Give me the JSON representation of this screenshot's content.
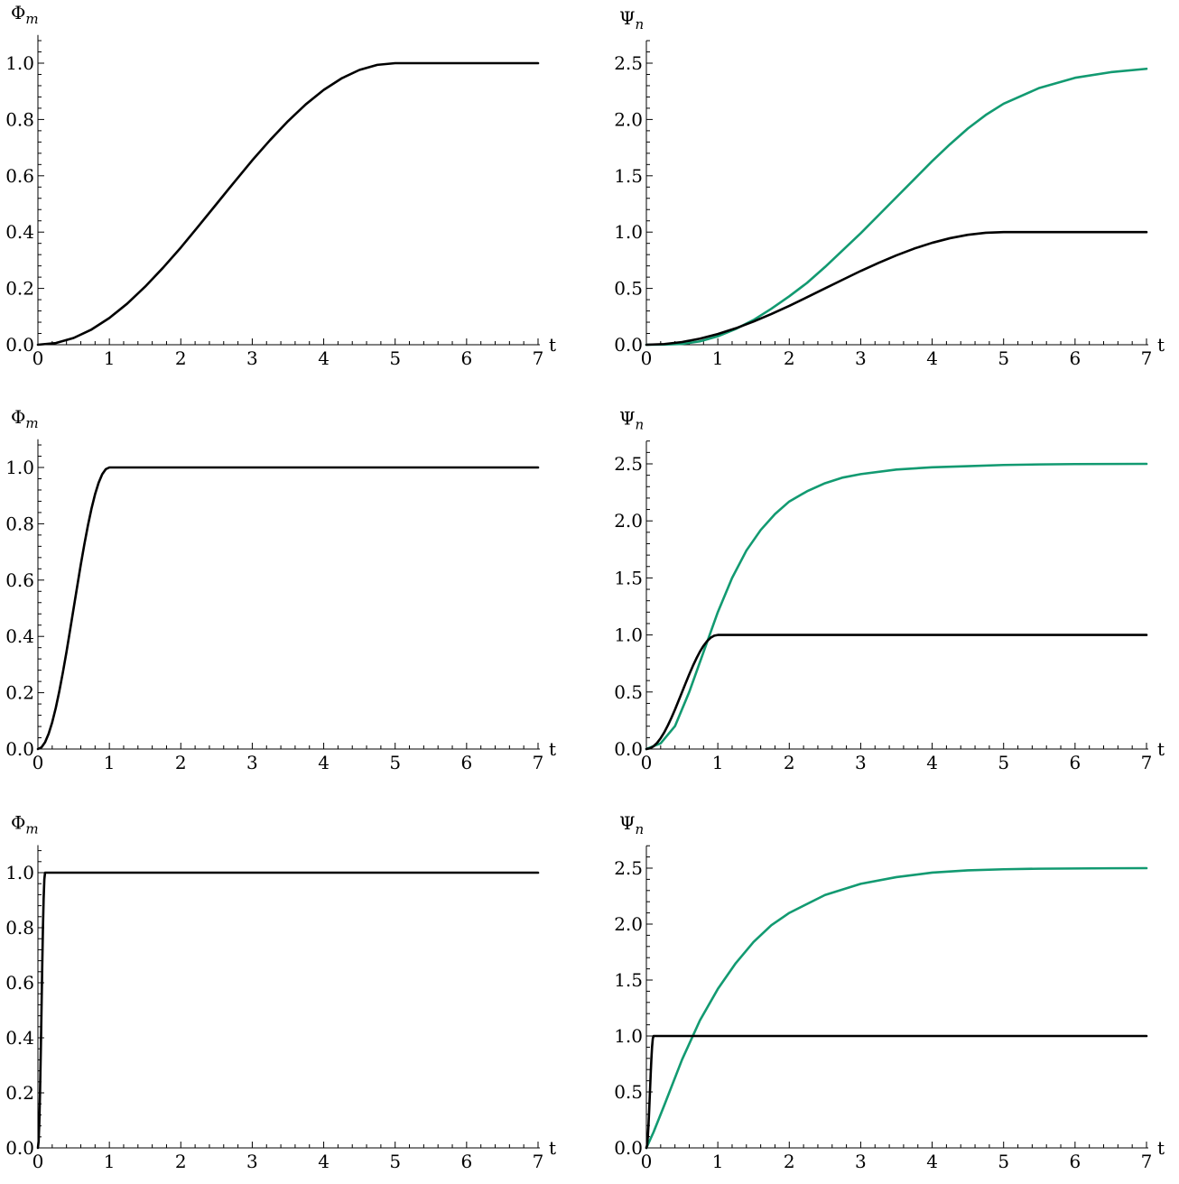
{
  "colors": {
    "black_series": "#000000",
    "green_series": "#129a71"
  },
  "chart_data": [
    {
      "type": "line",
      "ylabel": "Φ",
      "ylabel_sub": "m",
      "xlabel": "t",
      "xlim": [
        0,
        7
      ],
      "ylim": [
        0,
        1.1
      ],
      "xticks": [
        "0",
        "1",
        "2",
        "3",
        "4",
        "5",
        "6",
        "7"
      ],
      "yticks": [
        "0.0",
        "0.2",
        "0.4",
        "0.6",
        "0.8",
        "1.0"
      ],
      "ytick_values": [
        0,
        0.2,
        0.4,
        0.6,
        0.8,
        1.0
      ],
      "grid": false,
      "series": [
        {
          "color": "#000000",
          "x": [
            0,
            0.25,
            0.5,
            0.75,
            1,
            1.25,
            1.5,
            1.75,
            2,
            2.25,
            2.5,
            2.75,
            3,
            3.25,
            3.5,
            3.75,
            4,
            4.25,
            4.5,
            4.75,
            5,
            5.5,
            6,
            6.5,
            7
          ],
          "y": [
            0,
            0.006,
            0.024,
            0.054,
            0.095,
            0.146,
            0.206,
            0.273,
            0.345,
            0.422,
            0.5,
            0.578,
            0.655,
            0.727,
            0.794,
            0.854,
            0.905,
            0.946,
            0.976,
            0.994,
            1,
            1,
            1,
            1,
            1
          ]
        }
      ]
    },
    {
      "type": "line",
      "ylabel": "Ψ",
      "ylabel_sub": "n",
      "xlabel": "t",
      "xlim": [
        0,
        7
      ],
      "ylim": [
        0,
        2.7
      ],
      "xticks": [
        "0",
        "1",
        "2",
        "3",
        "4",
        "5",
        "6",
        "7"
      ],
      "yticks": [
        "0.0",
        "0.5",
        "1.0",
        "1.5",
        "2.0",
        "2.5"
      ],
      "ytick_values": [
        0,
        0.5,
        1.0,
        1.5,
        2.0,
        2.5
      ],
      "grid": false,
      "series": [
        {
          "color": "#129a71",
          "x": [
            0,
            0.25,
            0.5,
            0.75,
            1,
            1.25,
            1.5,
            1.75,
            2,
            2.25,
            2.5,
            2.75,
            3,
            3.25,
            3.5,
            3.75,
            4,
            4.25,
            4.5,
            4.75,
            5,
            5.5,
            6,
            6.5,
            7
          ],
          "y": [
            0,
            0.001,
            0.007,
            0.03,
            0.075,
            0.14,
            0.22,
            0.32,
            0.43,
            0.55,
            0.69,
            0.84,
            0.99,
            1.15,
            1.31,
            1.47,
            1.63,
            1.78,
            1.92,
            2.04,
            2.14,
            2.28,
            2.37,
            2.42,
            2.45
          ]
        },
        {
          "color": "#000000",
          "x": [
            0,
            0.25,
            0.5,
            0.75,
            1,
            1.25,
            1.5,
            1.75,
            2,
            2.25,
            2.5,
            2.75,
            3,
            3.25,
            3.5,
            3.75,
            4,
            4.25,
            4.5,
            4.75,
            5,
            5.5,
            6,
            6.5,
            7
          ],
          "y": [
            0,
            0.006,
            0.024,
            0.054,
            0.095,
            0.146,
            0.206,
            0.273,
            0.345,
            0.422,
            0.5,
            0.578,
            0.655,
            0.727,
            0.794,
            0.854,
            0.905,
            0.946,
            0.976,
            0.994,
            1,
            1,
            1,
            1,
            1
          ]
        }
      ]
    },
    {
      "type": "line",
      "ylabel": "Φ",
      "ylabel_sub": "m",
      "xlabel": "t",
      "xlim": [
        0,
        7
      ],
      "ylim": [
        0,
        1.1
      ],
      "xticks": [
        "0",
        "1",
        "2",
        "3",
        "4",
        "5",
        "6",
        "7"
      ],
      "yticks": [
        "0.0",
        "0.2",
        "0.4",
        "0.6",
        "0.8",
        "1.0"
      ],
      "ytick_values": [
        0,
        0.2,
        0.4,
        0.6,
        0.8,
        1.0
      ],
      "grid": false,
      "series": [
        {
          "color": "#000000",
          "x": [
            0,
            0.05,
            0.1,
            0.15,
            0.2,
            0.25,
            0.3,
            0.35,
            0.4,
            0.45,
            0.5,
            0.55,
            0.6,
            0.65,
            0.7,
            0.75,
            0.8,
            0.85,
            0.9,
            0.95,
            1,
            2,
            3,
            4,
            5,
            6,
            7
          ],
          "y": [
            0,
            0.006,
            0.024,
            0.054,
            0.095,
            0.146,
            0.206,
            0.273,
            0.345,
            0.422,
            0.5,
            0.578,
            0.655,
            0.727,
            0.794,
            0.854,
            0.905,
            0.946,
            0.976,
            0.994,
            1,
            1,
            1,
            1,
            1,
            1,
            1
          ]
        }
      ]
    },
    {
      "type": "line",
      "ylabel": "Ψ",
      "ylabel_sub": "n",
      "xlabel": "t",
      "xlim": [
        0,
        7
      ],
      "ylim": [
        0,
        2.7
      ],
      "xticks": [
        "0",
        "1",
        "2",
        "3",
        "4",
        "5",
        "6",
        "7"
      ],
      "yticks": [
        "0.0",
        "0.5",
        "1.0",
        "1.5",
        "2.0",
        "2.5"
      ],
      "ytick_values": [
        0,
        0.5,
        1.0,
        1.5,
        2.0,
        2.5
      ],
      "grid": false,
      "series": [
        {
          "color": "#129a71",
          "x": [
            0,
            0.2,
            0.4,
            0.6,
            0.8,
            1,
            1.2,
            1.4,
            1.6,
            1.8,
            2,
            2.25,
            2.5,
            2.75,
            3,
            3.5,
            4,
            4.5,
            5,
            5.5,
            6,
            6.5,
            7
          ],
          "y": [
            0,
            0.05,
            0.2,
            0.5,
            0.85,
            1.2,
            1.5,
            1.74,
            1.92,
            2.06,
            2.17,
            2.26,
            2.33,
            2.38,
            2.41,
            2.45,
            2.47,
            2.48,
            2.49,
            2.495,
            2.498,
            2.499,
            2.5
          ]
        },
        {
          "color": "#000000",
          "x": [
            0,
            0.05,
            0.1,
            0.15,
            0.2,
            0.25,
            0.3,
            0.35,
            0.4,
            0.45,
            0.5,
            0.55,
            0.6,
            0.65,
            0.7,
            0.75,
            0.8,
            0.85,
            0.9,
            0.95,
            1,
            2,
            3,
            4,
            5,
            6,
            7
          ],
          "y": [
            0,
            0.006,
            0.024,
            0.054,
            0.095,
            0.146,
            0.206,
            0.273,
            0.345,
            0.422,
            0.5,
            0.578,
            0.655,
            0.727,
            0.794,
            0.854,
            0.905,
            0.946,
            0.976,
            0.994,
            1,
            1,
            1,
            1,
            1,
            1,
            1
          ]
        }
      ]
    },
    {
      "type": "line",
      "ylabel": "Φ",
      "ylabel_sub": "m",
      "xlabel": "t",
      "xlim": [
        0,
        7
      ],
      "ylim": [
        0,
        1.1
      ],
      "xticks": [
        "0",
        "1",
        "2",
        "3",
        "4",
        "5",
        "6",
        "7"
      ],
      "yticks": [
        "0.0",
        "0.2",
        "0.4",
        "0.6",
        "0.8",
        "1.0"
      ],
      "ytick_values": [
        0,
        0.2,
        0.4,
        0.6,
        0.8,
        1.0
      ],
      "grid": false,
      "series": [
        {
          "color": "#000000",
          "x": [
            0,
            0.01,
            0.02,
            0.03,
            0.04,
            0.05,
            0.06,
            0.07,
            0.08,
            0.09,
            0.1,
            1,
            2,
            3,
            4,
            5,
            6,
            7
          ],
          "y": [
            0,
            0.024,
            0.095,
            0.206,
            0.345,
            0.5,
            0.655,
            0.794,
            0.905,
            0.976,
            1,
            1,
            1,
            1,
            1,
            1,
            1,
            1
          ]
        }
      ]
    },
    {
      "type": "line",
      "ylabel": "Ψ",
      "ylabel_sub": "n",
      "xlabel": "t",
      "xlim": [
        0,
        7
      ],
      "ylim": [
        0,
        2.7
      ],
      "xticks": [
        "0",
        "1",
        "2",
        "3",
        "4",
        "5",
        "6",
        "7"
      ],
      "yticks": [
        "0.0",
        "0.5",
        "1.0",
        "1.5",
        "2.0",
        "2.5"
      ],
      "ytick_values": [
        0,
        0.5,
        1.0,
        1.5,
        2.0,
        2.5
      ],
      "grid": false,
      "series": [
        {
          "color": "#129a71",
          "x": [
            0,
            0.1,
            0.25,
            0.5,
            0.75,
            1,
            1.25,
            1.5,
            1.75,
            2,
            2.5,
            3,
            3.5,
            4,
            4.5,
            5,
            5.5,
            6,
            6.5,
            7
          ],
          "y": [
            0,
            0.14,
            0.38,
            0.79,
            1.14,
            1.42,
            1.65,
            1.84,
            1.99,
            2.1,
            2.26,
            2.36,
            2.42,
            2.46,
            2.48,
            2.49,
            2.495,
            2.497,
            2.499,
            2.5
          ]
        },
        {
          "color": "#000000",
          "x": [
            0,
            0.01,
            0.02,
            0.03,
            0.04,
            0.05,
            0.06,
            0.07,
            0.08,
            0.09,
            0.1,
            1,
            2,
            3,
            4,
            5,
            6,
            7
          ],
          "y": [
            0,
            0.024,
            0.095,
            0.206,
            0.345,
            0.5,
            0.655,
            0.794,
            0.905,
            0.976,
            1,
            1,
            1,
            1,
            1,
            1,
            1,
            1
          ]
        }
      ]
    }
  ]
}
